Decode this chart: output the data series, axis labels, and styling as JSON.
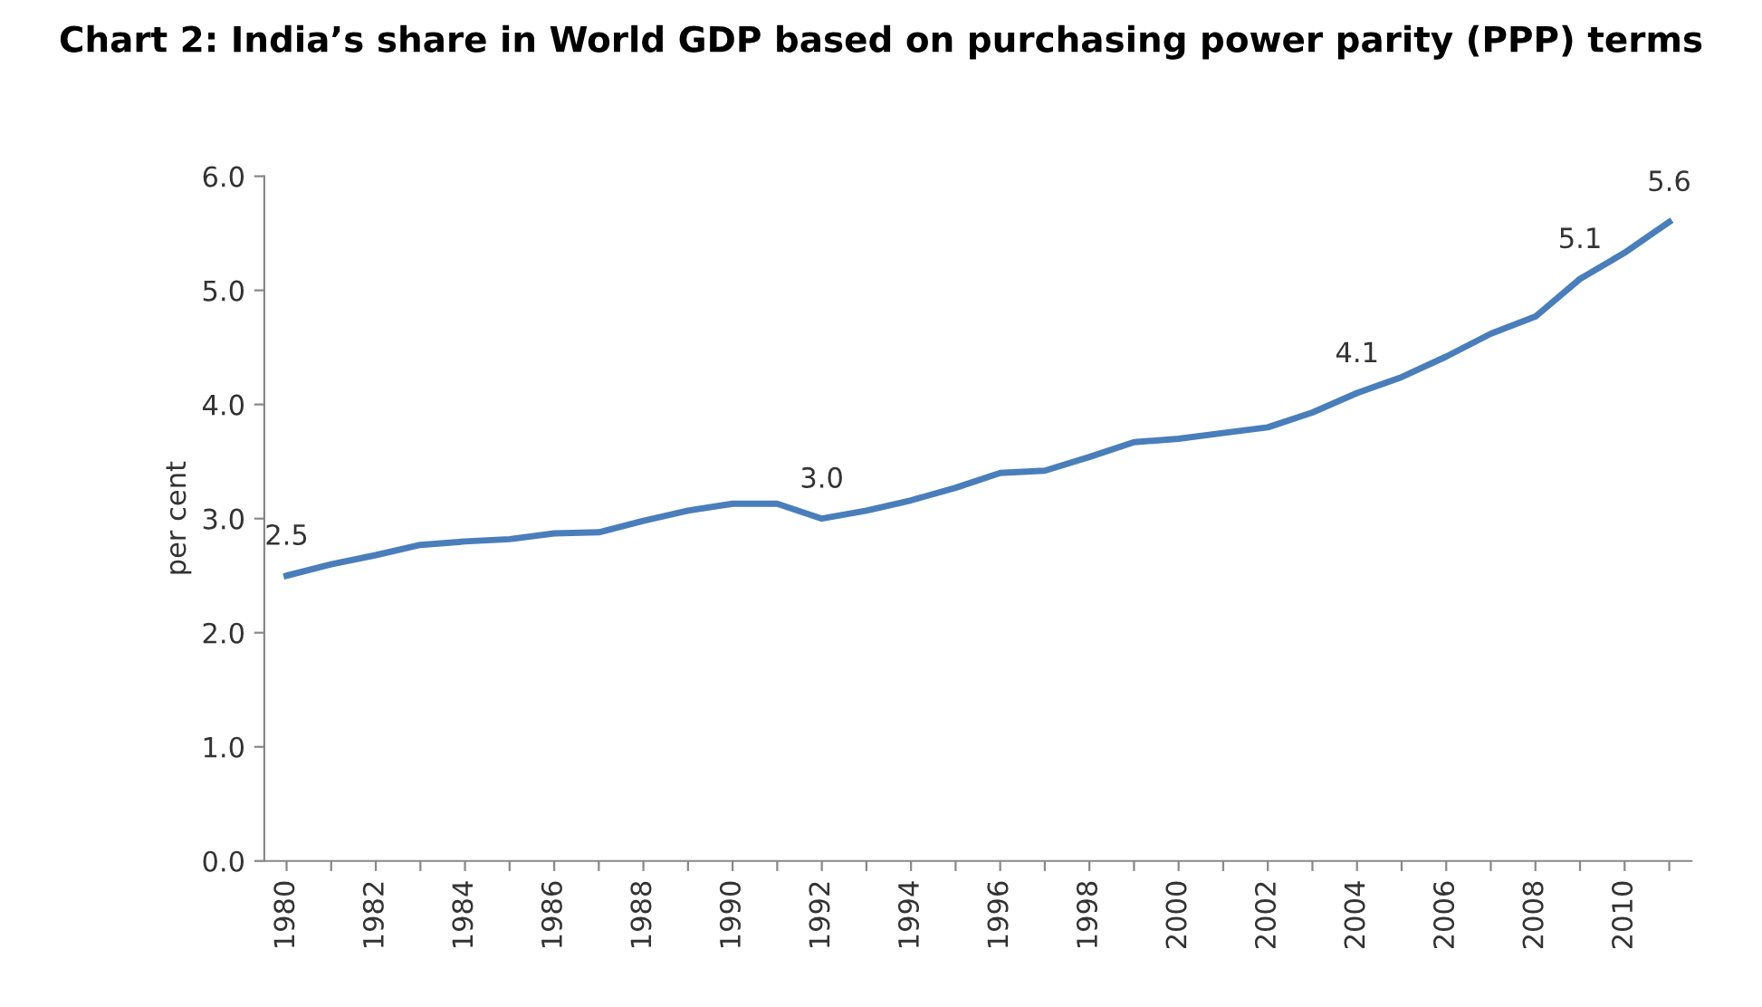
{
  "chart_data": {
    "type": "line",
    "title": "Chart 2: India’s share in World GDP based on purchasing power parity (PPP) terms",
    "ylabel": "per cent",
    "categories": [
      "1980",
      null,
      "1982",
      null,
      "1984",
      null,
      "1986",
      null,
      "1988",
      null,
      "1990",
      null,
      "1992",
      null,
      "1994",
      null,
      "1996",
      null,
      "1998",
      null,
      "2000",
      null,
      "2002",
      null,
      "2004",
      null,
      "2006",
      null,
      "2008",
      null,
      "2010",
      null
    ],
    "series": [
      {
        "color": "#4a7ebb",
        "values": [
          2.5,
          2.6,
          2.68,
          2.77,
          2.8,
          2.82,
          2.87,
          2.88,
          2.98,
          3.07,
          3.13,
          3.13,
          3.0,
          3.07,
          3.16,
          3.27,
          3.4,
          3.42,
          3.54,
          3.67,
          3.7,
          3.75,
          3.8,
          3.93,
          4.1,
          4.24,
          4.42,
          4.62,
          4.77,
          5.1,
          5.33,
          5.6
        ],
        "value_labels": [
          "2.5",
          null,
          null,
          null,
          null,
          null,
          null,
          null,
          null,
          null,
          null,
          null,
          "3.0",
          null,
          null,
          null,
          null,
          null,
          null,
          null,
          null,
          null,
          null,
          null,
          "4.1",
          null,
          null,
          null,
          null,
          "5.1",
          null,
          "5.6"
        ]
      }
    ],
    "ylim": [
      0,
      6
    ],
    "yticks": [
      {
        "value": 0,
        "label": "0.0"
      },
      {
        "value": 1,
        "label": "1.0"
      },
      {
        "value": 2,
        "label": "2.0"
      },
      {
        "value": 3,
        "label": "3.0"
      },
      {
        "value": 4,
        "label": "4.0"
      },
      {
        "value": 5,
        "label": "5.0"
      },
      {
        "value": 6,
        "label": "6.0"
      }
    ],
    "grid": false,
    "legend": false,
    "marker": "none",
    "line_style": "solid"
  }
}
